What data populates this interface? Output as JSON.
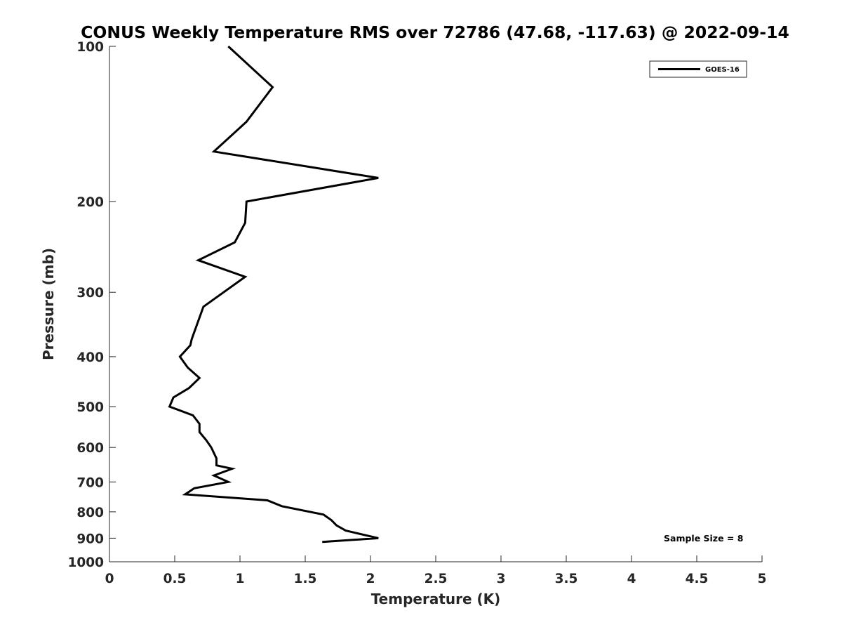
{
  "chart_data": {
    "type": "line",
    "title": "CONUS Weekly Temperature RMS over 72786 (47.68, -117.63) @ 2022-09-14",
    "xlabel": "Temperature (K)",
    "ylabel": "Pressure (mb)",
    "xlim": [
      0,
      5
    ],
    "ylim": [
      100,
      1000
    ],
    "yscale": "log",
    "y_reversed": true,
    "xticks": [
      0,
      0.5,
      1,
      1.5,
      2,
      2.5,
      3,
      3.5,
      4,
      4.5,
      5
    ],
    "xtick_labels": [
      "0",
      "0.5",
      "1",
      "1.5",
      "2",
      "2.5",
      "3",
      "3.5",
      "4",
      "4.5",
      "5"
    ],
    "yticks": [
      100,
      200,
      300,
      400,
      500,
      600,
      700,
      800,
      900,
      1000
    ],
    "ytick_labels": [
      "100",
      "200",
      "300",
      "400",
      "500",
      "600",
      "700",
      "800",
      "900",
      "1000"
    ],
    "grid": false,
    "legend_position": "top-right",
    "series": [
      {
        "name": "GOES-16",
        "color": "#000000",
        "points": [
          {
            "x": 0.91,
            "y": 100
          },
          {
            "x": 1.25,
            "y": 120
          },
          {
            "x": 1.05,
            "y": 140
          },
          {
            "x": 0.8,
            "y": 160
          },
          {
            "x": 2.06,
            "y": 180
          },
          {
            "x": 1.05,
            "y": 200
          },
          {
            "x": 1.04,
            "y": 220
          },
          {
            "x": 0.96,
            "y": 240
          },
          {
            "x": 0.68,
            "y": 260
          },
          {
            "x": 1.04,
            "y": 280
          },
          {
            "x": 0.72,
            "y": 320
          },
          {
            "x": 0.63,
            "y": 370
          },
          {
            "x": 0.62,
            "y": 380
          },
          {
            "x": 0.54,
            "y": 400
          },
          {
            "x": 0.6,
            "y": 420
          },
          {
            "x": 0.69,
            "y": 440
          },
          {
            "x": 0.61,
            "y": 460
          },
          {
            "x": 0.49,
            "y": 480
          },
          {
            "x": 0.46,
            "y": 500
          },
          {
            "x": 0.64,
            "y": 520
          },
          {
            "x": 0.69,
            "y": 540
          },
          {
            "x": 0.69,
            "y": 560
          },
          {
            "x": 0.74,
            "y": 580
          },
          {
            "x": 0.78,
            "y": 600
          },
          {
            "x": 0.82,
            "y": 630
          },
          {
            "x": 0.82,
            "y": 650
          },
          {
            "x": 0.94,
            "y": 660
          },
          {
            "x": 0.8,
            "y": 680
          },
          {
            "x": 0.91,
            "y": 700
          },
          {
            "x": 0.65,
            "y": 720
          },
          {
            "x": 0.58,
            "y": 740
          },
          {
            "x": 1.21,
            "y": 760
          },
          {
            "x": 1.32,
            "y": 780
          },
          {
            "x": 1.64,
            "y": 810
          },
          {
            "x": 1.7,
            "y": 830
          },
          {
            "x": 1.74,
            "y": 850
          },
          {
            "x": 1.81,
            "y": 870
          },
          {
            "x": 2.06,
            "y": 900
          },
          {
            "x": 1.63,
            "y": 915
          }
        ]
      }
    ],
    "annotation": "Sample Size = 8"
  }
}
